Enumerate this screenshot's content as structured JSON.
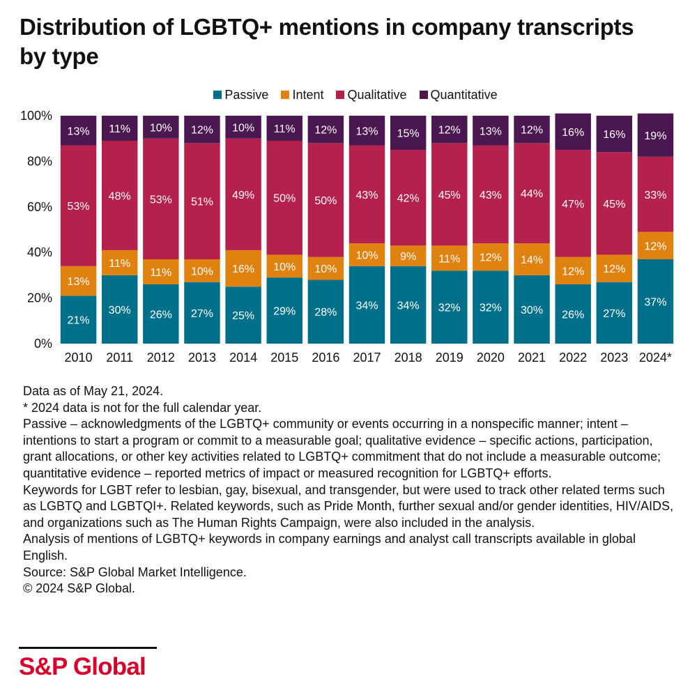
{
  "title": "Distribution of LGBTQ+ mentions in company transcripts by type",
  "legend": [
    {
      "label": "Passive",
      "color": "#00708a"
    },
    {
      "label": "Intent",
      "color": "#e0820f"
    },
    {
      "label": "Qualitative",
      "color": "#b5214d"
    },
    {
      "label": "Quantitative",
      "color": "#4b1751"
    }
  ],
  "chart_data": {
    "type": "bar",
    "stacked": true,
    "title": "Distribution of LGBTQ+ mentions in company transcripts by type",
    "categories": [
      "2010",
      "2011",
      "2012",
      "2013",
      "2014",
      "2015",
      "2016",
      "2017",
      "2018",
      "2019",
      "2020",
      "2021",
      "2022",
      "2023",
      "2024*"
    ],
    "ylim": [
      0,
      100
    ],
    "yticks": [
      "0%",
      "20%",
      "40%",
      "60%",
      "80%",
      "100%"
    ],
    "series": [
      {
        "name": "Passive",
        "color": "#00708a",
        "values": [
          21,
          30,
          26,
          27,
          25,
          29,
          28,
          34,
          34,
          32,
          32,
          30,
          26,
          27,
          37
        ]
      },
      {
        "name": "Intent",
        "color": "#e0820f",
        "values": [
          13,
          11,
          11,
          10,
          16,
          10,
          10,
          10,
          9,
          11,
          12,
          14,
          12,
          12,
          12
        ]
      },
      {
        "name": "Qualitative",
        "color": "#b5214d",
        "values": [
          53,
          48,
          53,
          51,
          49,
          50,
          50,
          43,
          42,
          45,
          43,
          44,
          47,
          45,
          33
        ]
      },
      {
        "name": "Quantitative",
        "color": "#4b1751",
        "values": [
          13,
          11,
          10,
          12,
          10,
          11,
          12,
          13,
          15,
          12,
          13,
          12,
          16,
          16,
          19
        ]
      }
    ],
    "legend_position": "top-center",
    "grid": false
  },
  "notes": [
    "Data as of May 21, 2024.",
    "* 2024 data is not for the full calendar year.",
    "Passive – acknowledgments of the LGBTQ+ community or events occurring in a nonspecific manner; intent – intentions to start a program or commit to a measurable goal; qualitative evidence – specific actions, participation, grant allocations, or other key activities related to LGBTQ+ commitment that do not include a measurable outcome; quantitative evidence – reported metrics of impact or measured recognition for LGBTQ+ efforts.",
    "Keywords for LGBT refer to lesbian, gay, bisexual,  and transgender, but were used to track other related terms such as LGBTQ and LGBTQI+. Related keywords, such as Pride Month, further sexual and/or gender identities, HIV/AIDS, and organizations such as The Human Rights Campaign, were also included in the analysis.",
    "Analysis of mentions of LGBTQ+ keywords in company earnings and analyst call transcripts available in global English.",
    "Source: S&P Global Market Intelligence.",
    "© 2024 S&P Global."
  ],
  "brand": {
    "name": "S&P Global"
  }
}
